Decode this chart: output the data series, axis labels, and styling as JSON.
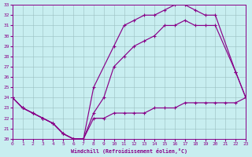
{
  "xlabel": "Windchill (Refroidissement éolien,°C)",
  "xlim": [
    0,
    23
  ],
  "ylim": [
    20,
    33
  ],
  "xticks": [
    0,
    1,
    2,
    3,
    4,
    5,
    6,
    7,
    8,
    9,
    10,
    11,
    12,
    13,
    14,
    15,
    16,
    17,
    18,
    19,
    20,
    21,
    22,
    23
  ],
  "yticks": [
    20,
    21,
    22,
    23,
    24,
    25,
    26,
    27,
    28,
    29,
    30,
    31,
    32,
    33
  ],
  "bg_color": "#c8eef0",
  "grid_color": "#9bbfc0",
  "line_color": "#880088",
  "series": [
    {
      "x": [
        0,
        1,
        2,
        3,
        4,
        5,
        6,
        7,
        8,
        9,
        10,
        11,
        12,
        13,
        14,
        15,
        16,
        17,
        18,
        19,
        20,
        21,
        22,
        23
      ],
      "y": [
        24,
        23,
        22.5,
        22,
        21.5,
        20.5,
        20,
        20,
        22,
        22,
        22.5,
        22.5,
        22.5,
        22.5,
        23,
        23,
        23,
        23.5,
        23.5,
        23.5,
        23.5,
        23.5,
        23.5,
        24
      ]
    },
    {
      "x": [
        0,
        1,
        2,
        3,
        4,
        5,
        6,
        7,
        8,
        10,
        11,
        12,
        13,
        14,
        15,
        16,
        17,
        18,
        19,
        20,
        22,
        23
      ],
      "y": [
        24,
        23,
        22.5,
        22,
        21.5,
        20.5,
        20,
        20,
        25,
        29,
        31,
        31.5,
        32,
        32,
        32.5,
        33,
        33,
        32.5,
        32,
        32,
        26.5,
        24
      ]
    },
    {
      "x": [
        0,
        1,
        2,
        3,
        4,
        5,
        6,
        7,
        8,
        9,
        10,
        11,
        12,
        13,
        14,
        15,
        16,
        17,
        18,
        19,
        20,
        22,
        23
      ],
      "y": [
        24,
        23,
        22.5,
        22,
        21.5,
        20.5,
        20,
        20,
        22.5,
        24,
        27,
        28,
        29,
        29.5,
        30,
        31,
        31,
        31.5,
        31,
        31,
        31,
        26.5,
        24
      ]
    }
  ]
}
